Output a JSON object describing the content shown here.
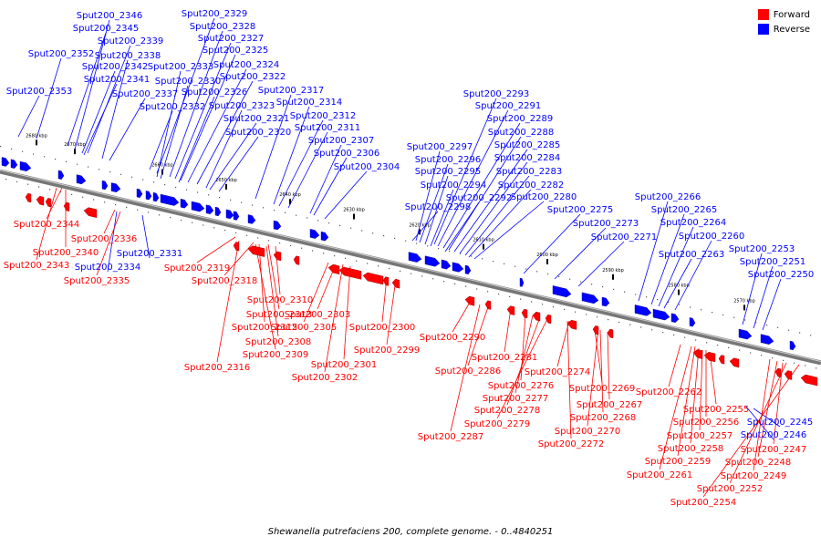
{
  "legend": {
    "forward_label": "Forward",
    "reverse_label": "Reverse",
    "forward_color": "#ff0000",
    "reverse_color": "#0000ff"
  },
  "caption": "Shewanella putrefaciens 200, complete genome. - 0..4840251",
  "scale_ticks": [
    "2680 kbp",
    "2670 kbp",
    "2660 kbp",
    "2650 kbp",
    "2640 kbp",
    "2630 kbp",
    "2620 kbp",
    "2610 kbp",
    "2600 kbp",
    "2590 kbp",
    "2580 kbp",
    "2570 kbp"
  ],
  "genes": {
    "reverse": [
      "Sput200_2346",
      "Sput200_2345",
      "Sput200_2339",
      "Sput200_2352",
      "Sput200_2338",
      "Sput200_2342",
      "Sput200_2341",
      "Sput200_2353",
      "Sput200_2337",
      "Sput200_2332",
      "Sput200_2329",
      "Sput200_2328",
      "Sput200_2327",
      "Sput200_2325",
      "Sput200_2333",
      "Sput200_2324",
      "Sput200_2330",
      "Sput200_2322",
      "Sput200_2326",
      "Sput200_2317",
      "Sput200_2323",
      "Sput200_2314",
      "Sput200_2321",
      "Sput200_2312",
      "Sput200_2320",
      "Sput200_2311",
      "Sput200_2307",
      "Sput200_2306",
      "Sput200_2304",
      "Sput200_2293",
      "Sput200_2291",
      "Sput200_2289",
      "Sput200_2288",
      "Sput200_2297",
      "Sput200_2285",
      "Sput200_2296",
      "Sput200_2284",
      "Sput200_2295",
      "Sput200_2283",
      "Sput200_2294",
      "Sput200_2282",
      "Sput200_2298",
      "Sput200_2292",
      "Sput200_2280",
      "Sput200_2275",
      "Sput200_2273",
      "Sput200_2271",
      "Sput200_2266",
      "Sput200_2265",
      "Sput200_2264",
      "Sput200_2260",
      "Sput200_2263",
      "Sput200_2253",
      "Sput200_2251",
      "Sput200_2250",
      "Sput200_2331",
      "Sput200_2334",
      "Sput200_2245",
      "Sput200_2246"
    ],
    "forward": [
      "Sput200_2344",
      "Sput200_2340",
      "Sput200_2336",
      "Sput200_2343",
      "Sput200_2335",
      "Sput200_2319",
      "Sput200_2318",
      "Sput200_2310",
      "Sput200_2313",
      "Sput200_2303",
      "Sput200_2315",
      "Sput200_2305",
      "Sput200_2300",
      "Sput200_2308",
      "Sput200_2309",
      "Sput200_2299",
      "Sput200_2316",
      "Sput200_2301",
      "Sput200_2302",
      "Sput200_2290",
      "Sput200_2281",
      "Sput200_2286",
      "Sput200_2274",
      "Sput200_2276",
      "Sput200_2277",
      "Sput200_2278",
      "Sput200_2279",
      "Sput200_2287",
      "Sput200_2269",
      "Sput200_2267",
      "Sput200_2268",
      "Sput200_2270",
      "Sput200_2272",
      "Sput200_2262",
      "Sput200_2255",
      "Sput200_2256",
      "Sput200_2257",
      "Sput200_2258",
      "Sput200_2259",
      "Sput200_2261",
      "Sput200_2247",
      "Sput200_2248",
      "Sput200_2249",
      "Sput200_2252",
      "Sput200_2254"
    ]
  }
}
